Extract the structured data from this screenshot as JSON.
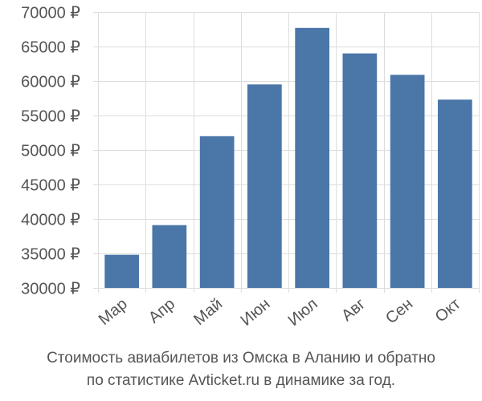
{
  "caption": {
    "line1": "Стоимость авиабилетов из Омска в Аланию и обратно",
    "line2": "по статистике Avticket.ru в динамике за год."
  },
  "colors": {
    "bar": "#4a76a8",
    "grid": "#dddddd",
    "axis_text": "#555555"
  },
  "chart_data": {
    "type": "bar",
    "categories": [
      "Мар",
      "Апр",
      "Май",
      "Июн",
      "Июл",
      "Авг",
      "Сен",
      "Окт"
    ],
    "values": [
      34800,
      39100,
      52000,
      59500,
      67700,
      64000,
      60900,
      57300
    ],
    "ylim": [
      30000,
      70000
    ],
    "y_ticks": [
      30000,
      35000,
      40000,
      45000,
      50000,
      55000,
      60000,
      65000,
      70000
    ],
    "y_tick_labels": [
      "30000 ₽",
      "35000 ₽",
      "40000 ₽",
      "45000 ₽",
      "50000 ₽",
      "55000 ₽",
      "60000 ₽",
      "65000 ₽",
      "70000 ₽"
    ],
    "grid": true,
    "title": "",
    "xlabel": "",
    "ylabel": ""
  }
}
